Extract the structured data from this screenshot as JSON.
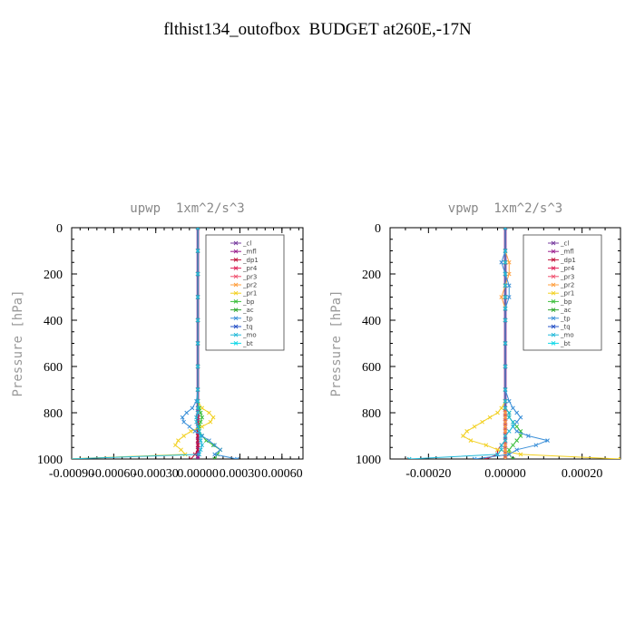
{
  "title": "flthist134_outofbox  BUDGET at260E,-17N",
  "ylabel": "Pressure [hPa]",
  "legend_entries": [
    {
      "label": "_cl",
      "color": "#7a3fa0"
    },
    {
      "label": "_mfl",
      "color": "#9b1f8e"
    },
    {
      "label": "_dp1",
      "color": "#c0143c"
    },
    {
      "label": "_pr4",
      "color": "#e0245a"
    },
    {
      "label": "_pr3",
      "color": "#f0506e"
    },
    {
      "label": "_pr2",
      "color": "#ffa040"
    },
    {
      "label": "_pr1",
      "color": "#f2d020"
    },
    {
      "label": "_bp",
      "color": "#3cbf3c"
    },
    {
      "label": "_ac",
      "color": "#2fa82f"
    },
    {
      "label": "_tp",
      "color": "#3a8fd8"
    },
    {
      "label": "_tq",
      "color": "#2a55c8"
    },
    {
      "label": "_mo",
      "color": "#1fb8d8"
    },
    {
      "label": "_bt",
      "color": "#10d8e8"
    }
  ],
  "chart_data": [
    {
      "type": "line",
      "title": "upwp  1xm^2/s^3",
      "xlabel": "",
      "ylabel": "Pressure [hPa]",
      "xlim": [
        -0.0009,
        0.00075
      ],
      "ylim": [
        1000,
        0
      ],
      "x_ticks": [
        "-0.00090",
        "-0.00060",
        "-0.00030",
        "0.00000",
        "0.00030",
        "0.00060"
      ],
      "y_ticks": [
        "0",
        "200",
        "400",
        "600",
        "800",
        "1000"
      ],
      "legend_position": "top-right",
      "pressure": [
        0,
        100,
        200,
        300,
        400,
        500,
        600,
        700,
        750,
        780,
        800,
        820,
        840,
        860,
        880,
        900,
        920,
        940,
        960,
        980,
        1000
      ],
      "series": [
        {
          "name": "_cl",
          "values": [
            0,
            0,
            0,
            0,
            0,
            0,
            0,
            0,
            0,
            0,
            0,
            0,
            0,
            0,
            0,
            0,
            0,
            0,
            0,
            0,
            0
          ]
        },
        {
          "name": "_mfl",
          "values": [
            0,
            0,
            0,
            0,
            0,
            0,
            0,
            0,
            0,
            0,
            0,
            0,
            0,
            0,
            0,
            0,
            0,
            0,
            0,
            0,
            0
          ]
        },
        {
          "name": "_dp1",
          "values": [
            0,
            0,
            0,
            0,
            0,
            0,
            0,
            0,
            0,
            0,
            0,
            0,
            0,
            0,
            0,
            0,
            0,
            0,
            0,
            -2e-05,
            -5e-05
          ]
        },
        {
          "name": "_pr1",
          "values": [
            0,
            0,
            0,
            0,
            0,
            0,
            0,
            0,
            0,
            3e-05,
            8e-05,
            0.00011,
            9e-05,
            3e-05,
            -5e-05,
            -0.0001,
            -0.00014,
            -0.00016,
            -0.00012,
            -9e-05,
            -0.00095
          ]
        },
        {
          "name": "_bp",
          "values": [
            0,
            0,
            0,
            0,
            0,
            0,
            0,
            0,
            0,
            1e-05,
            2e-05,
            3e-05,
            2e-05,
            1e-05,
            1e-05,
            3e-05,
            6e-05,
            0.00011,
            0.00016,
            0.00014,
            0.00012
          ]
        },
        {
          "name": "_tp",
          "values": [
            0,
            0,
            0,
            0,
            0,
            0,
            0,
            0,
            -1e-05,
            -4e-05,
            -8e-05,
            -0.00011,
            -0.0001,
            -6e-05,
            -2e-05,
            3e-05,
            8e-05,
            0.00012,
            0.00016,
            0.00012,
            0.00028
          ]
        },
        {
          "name": "_mo",
          "values": [
            0,
            0,
            0,
            0,
            0,
            0,
            0,
            0,
            0,
            0,
            0,
            -1e-05,
            -1e-05,
            0,
            1e-05,
            2e-05,
            2e-05,
            3e-05,
            2e-05,
            1e-05,
            -0.00093
          ]
        }
      ]
    },
    {
      "type": "line",
      "title": "vpwp  1xm^2/s^3",
      "xlabel": "",
      "ylabel": "Pressure [hPa]",
      "xlim": [
        -0.0003,
        0.0003
      ],
      "ylim": [
        1000,
        0
      ],
      "x_ticks": [
        "-0.00020",
        "0.00000",
        "0.00020"
      ],
      "y_ticks": [
        "0",
        "200",
        "400",
        "600",
        "800",
        "1000"
      ],
      "legend_position": "top-right",
      "pressure": [
        0,
        100,
        150,
        200,
        250,
        300,
        350,
        400,
        500,
        600,
        700,
        750,
        780,
        800,
        820,
        840,
        860,
        880,
        900,
        920,
        940,
        960,
        980,
        1000
      ],
      "series": [
        {
          "name": "_cl",
          "values": [
            0,
            0,
            0,
            0,
            0,
            0,
            0,
            0,
            0,
            0,
            0,
            0,
            0,
            0,
            0,
            0,
            0,
            0,
            0,
            0,
            0,
            0,
            0,
            0
          ]
        },
        {
          "name": "_mfl",
          "values": [
            0,
            0,
            0,
            0,
            0,
            0,
            0,
            0,
            0,
            0,
            0,
            0,
            0,
            0,
            0,
            0,
            0,
            0,
            0,
            0,
            0,
            0,
            0,
            0
          ]
        },
        {
          "name": "_dp1",
          "values": [
            0,
            0,
            0,
            0,
            0,
            0,
            0,
            0,
            0,
            0,
            0,
            0,
            0,
            0,
            0,
            0,
            0,
            0,
            0,
            0,
            -1e-05,
            -2e-05,
            -2e-05,
            -5e-05
          ]
        },
        {
          "name": "_pr1",
          "values": [
            0,
            0,
            0,
            0,
            0,
            0,
            0,
            0,
            0,
            0,
            0,
            0,
            -1e-05,
            -2e-05,
            -4e-05,
            -6e-05,
            -8e-05,
            -0.0001,
            -0.00011,
            -9e-05,
            -5e-05,
            -2e-05,
            4e-05,
            0.0003
          ]
        },
        {
          "name": "_pr2",
          "values": [
            0,
            0,
            1e-05,
            1e-05,
            0,
            -1e-05,
            0,
            0,
            0,
            0,
            0,
            0,
            0,
            0,
            0,
            0,
            0,
            0,
            0,
            0,
            0,
            0,
            0,
            0
          ]
        },
        {
          "name": "_bp",
          "values": [
            0,
            0,
            0,
            0,
            0,
            0,
            0,
            0,
            0,
            0,
            0,
            0,
            0,
            1e-05,
            1e-05,
            2e-05,
            3e-05,
            4e-05,
            4e-05,
            3e-05,
            2e-05,
            1e-05,
            1e-05,
            2e-05
          ]
        },
        {
          "name": "_tp",
          "values": [
            0,
            0,
            -1e-05,
            0,
            1e-05,
            1e-05,
            0,
            0,
            0,
            0,
            0,
            1e-05,
            2e-05,
            3e-05,
            4e-05,
            3e-05,
            2e-05,
            3e-05,
            6e-05,
            0.00011,
            8e-05,
            3e-05,
            1e-05,
            -8e-05
          ]
        },
        {
          "name": "_mo",
          "values": [
            0,
            0,
            0,
            0,
            0,
            0,
            0,
            0,
            0,
            0,
            0,
            0,
            0,
            1e-05,
            1e-05,
            2e-05,
            2e-05,
            1e-05,
            0,
            0,
            -1e-05,
            -1e-05,
            -2e-05,
            -0.00025
          ]
        }
      ]
    }
  ]
}
